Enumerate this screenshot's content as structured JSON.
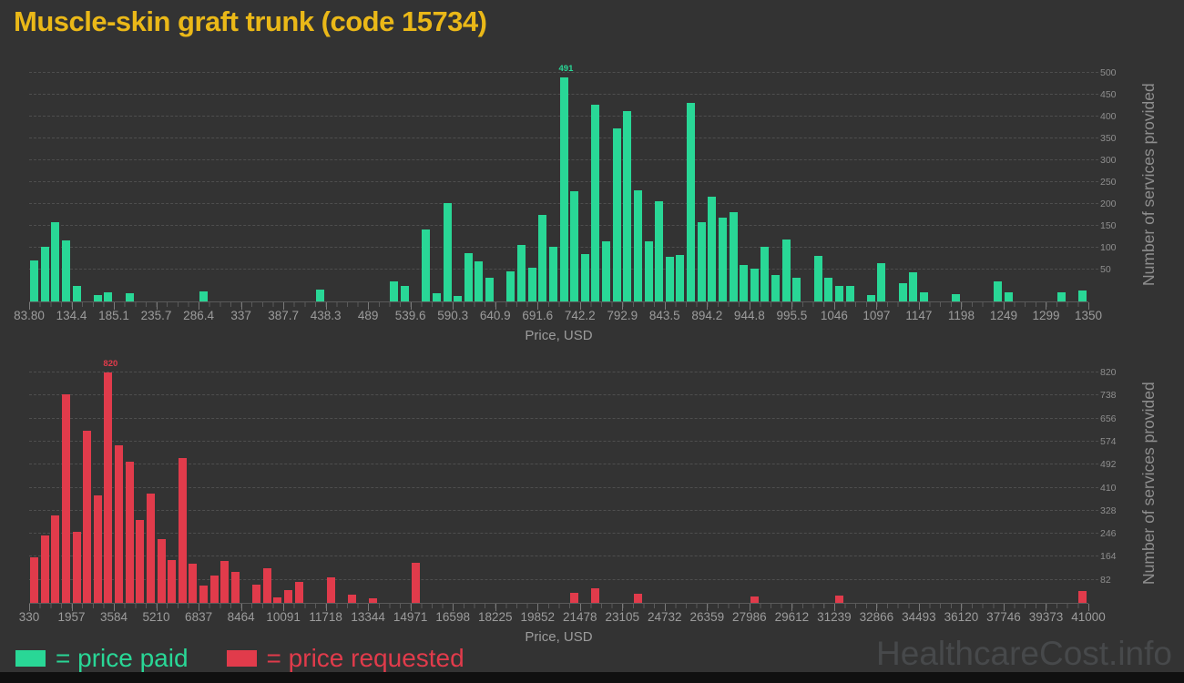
{
  "title": "Muscle-skin graft trunk (code 15734)",
  "watermark": "HealthcareCost.info",
  "colors": {
    "background": "#333333",
    "paid": "#29d796",
    "requested": "#e13b4b",
    "title": "#eab818",
    "axis_text": "#9c9c9c",
    "grid": "#4e4e4e",
    "watermark": "#47494b",
    "footer": "#101010"
  },
  "legend": {
    "paid_label": "= price paid",
    "requested_label": "= price requested"
  },
  "chart_data": [
    {
      "type": "bar",
      "name": "price paid",
      "color": "#29d796",
      "xlabel": "Price, USD",
      "ylabel": "Number of services provided",
      "x_min": 83.8,
      "x_max": 1350,
      "bins": 100,
      "x_tick_labels": [
        "83.80",
        "134.4",
        "185.1",
        "235.7",
        "286.4",
        "337",
        "387.7",
        "438.3",
        "489",
        "539.6",
        "590.3",
        "640.9",
        "691.6",
        "742.2",
        "792.9",
        "843.5",
        "894.2",
        "944.8",
        "995.5",
        "1046",
        "1097",
        "1147",
        "1198",
        "1249",
        "1299",
        "1350"
      ],
      "y_ticks": [
        50,
        100,
        150,
        200,
        250,
        300,
        350,
        400,
        450,
        500
      ],
      "ylim": [
        0,
        515
      ],
      "grid": true,
      "legend_position": "bottom-left",
      "values": [
        90,
        120,
        174,
        134,
        34,
        0,
        14,
        20,
        0,
        18,
        0,
        0,
        0,
        0,
        0,
        0,
        22,
        0,
        0,
        0,
        0,
        0,
        0,
        0,
        0,
        0,
        0,
        26,
        0,
        0,
        0,
        0,
        0,
        0,
        44,
        34,
        0,
        157,
        17,
        216,
        12,
        106,
        88,
        52,
        0,
        65,
        124,
        74,
        189,
        120,
        491,
        242,
        104,
        430,
        132,
        378,
        417,
        244,
        132,
        219,
        97,
        102,
        435,
        173,
        230,
        183,
        195,
        80,
        72,
        119,
        58,
        135,
        52,
        0,
        99,
        52,
        34,
        34,
        0,
        14,
        84,
        0,
        40,
        64,
        19,
        0,
        0,
        15,
        0,
        0,
        0,
        43,
        20,
        0,
        0,
        0,
        0,
        19,
        0,
        23
      ],
      "annotations": [
        {
          "bin": 50,
          "text": "491"
        }
      ]
    },
    {
      "type": "bar",
      "name": "price requested",
      "color": "#e13b4b",
      "xlabel": "Price, USD",
      "ylabel": "Number of services provided",
      "x_min": 330,
      "x_max": 41000,
      "bins": 100,
      "x_tick_labels": [
        "330",
        "1957",
        "3584",
        "5210",
        "6837",
        "8464",
        "10091",
        "11718",
        "13344",
        "14971",
        "16598",
        "18225",
        "19852",
        "21478",
        "23105",
        "24732",
        "26359",
        "27986",
        "29612",
        "31239",
        "32866",
        "34493",
        "36120",
        "37746",
        "39373",
        "41000"
      ],
      "y_ticks": [
        82,
        164,
        246,
        328,
        410,
        492,
        574,
        656,
        738,
        820
      ],
      "ylim": [
        0,
        845
      ],
      "grid": true,
      "legend_position": "bottom-left",
      "values": [
        161,
        241,
        311,
        743,
        252,
        613,
        382,
        820,
        560,
        501,
        295,
        390,
        228,
        152,
        516,
        138,
        63,
        98,
        150,
        111,
        0,
        66,
        122,
        19,
        44,
        73,
        0,
        0,
        91,
        0,
        28,
        0,
        17,
        0,
        0,
        0,
        143,
        0,
        0,
        0,
        0,
        0,
        0,
        0,
        0,
        0,
        0,
        0,
        0,
        0,
        0,
        37,
        0,
        53,
        0,
        0,
        0,
        33,
        0,
        0,
        0,
        0,
        0,
        0,
        0,
        0,
        0,
        0,
        22,
        0,
        0,
        0,
        0,
        0,
        0,
        0,
        25,
        0,
        0,
        0,
        0,
        0,
        0,
        0,
        0,
        0,
        0,
        0,
        0,
        0,
        0,
        0,
        0,
        0,
        0,
        0,
        0,
        0,
        0,
        43
      ],
      "annotations": [
        {
          "bin": 7,
          "text": "820"
        }
      ]
    }
  ]
}
